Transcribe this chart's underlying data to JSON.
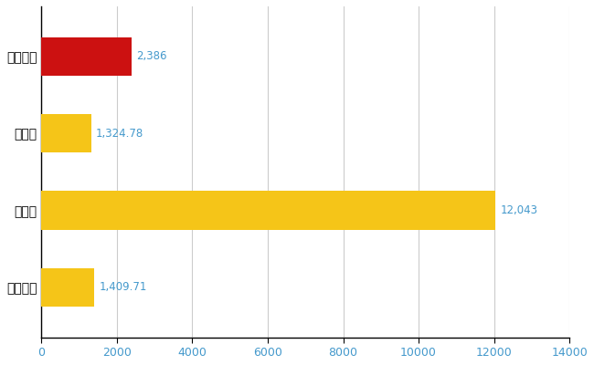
{
  "categories": [
    "春日部市",
    "県平均",
    "県最大",
    "全国平均"
  ],
  "values": [
    2386,
    1324.78,
    12043,
    1409.71
  ],
  "labels": [
    "2,386",
    "1,324.78",
    "12,043",
    "1,409.71"
  ],
  "bar_colors": [
    "#cc1111",
    "#f5c518",
    "#f5c518",
    "#f5c518"
  ],
  "xlim": [
    0,
    14000
  ],
  "xticks": [
    0,
    2000,
    4000,
    6000,
    8000,
    10000,
    12000,
    14000
  ],
  "background_color": "#ffffff",
  "grid_color": "#cccccc",
  "label_color": "#4499cc",
  "label_fontsize": 8.5,
  "tick_fontsize": 9,
  "ylabel_fontsize": 10,
  "bar_height": 0.5
}
